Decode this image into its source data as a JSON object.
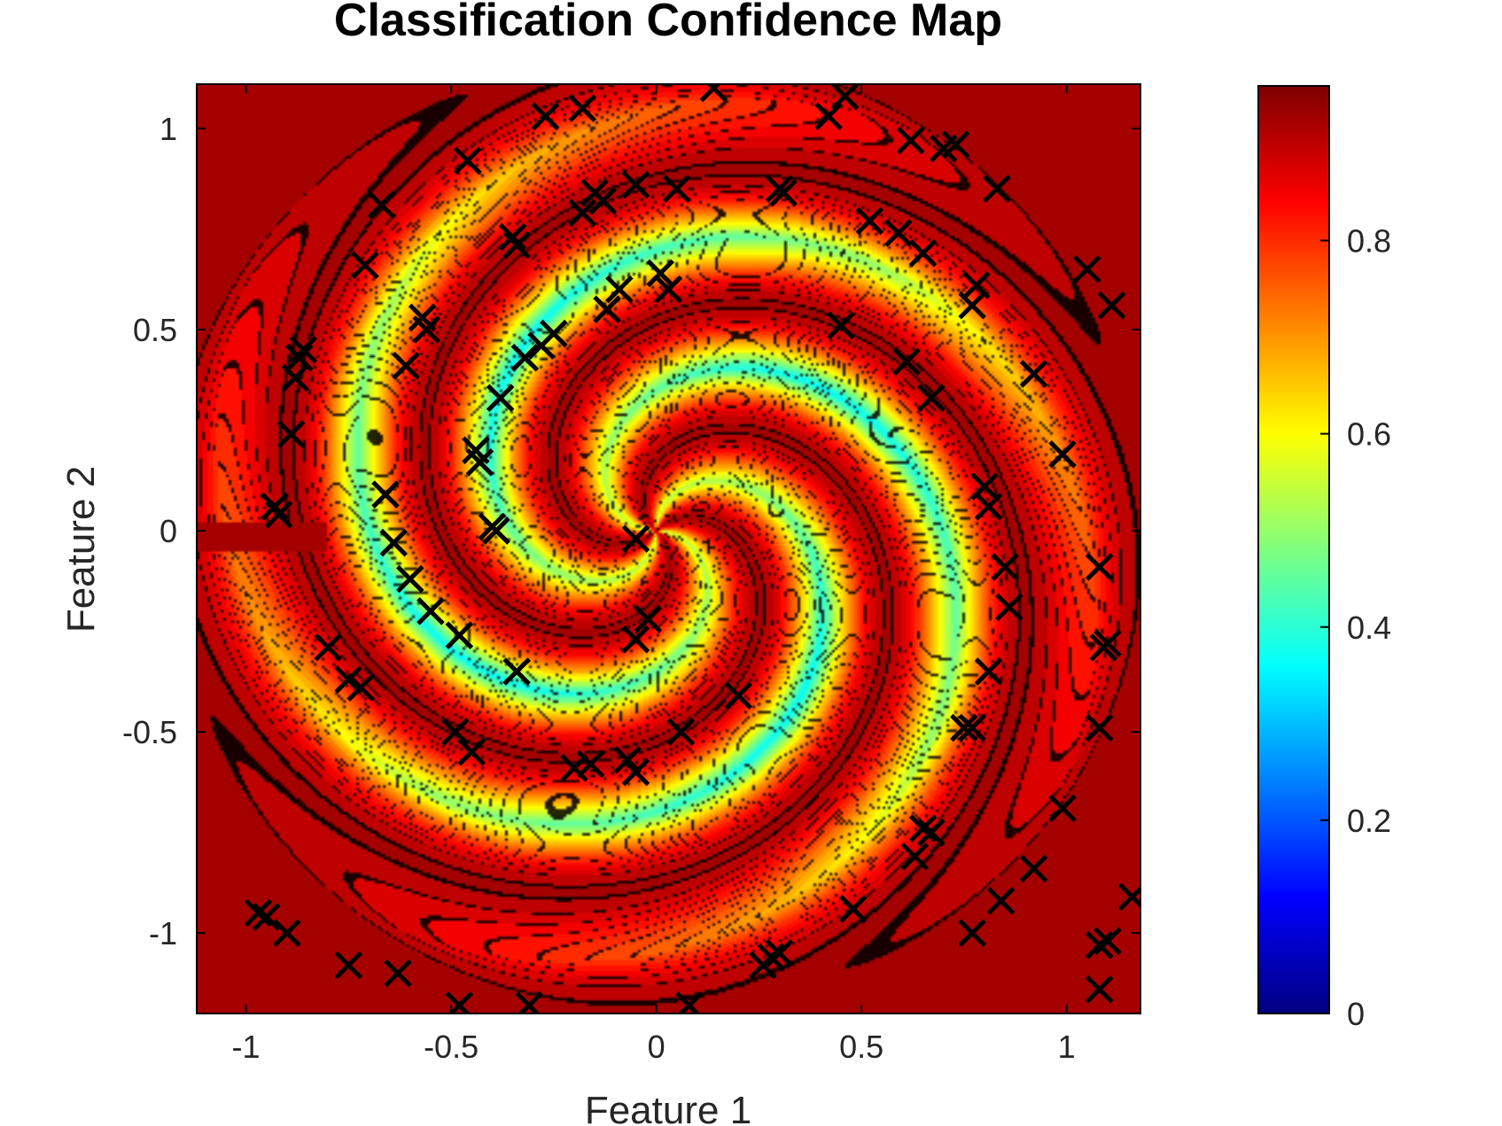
{
  "chart_data": {
    "type": "heatmap",
    "title": "Classification Confidence Map",
    "xlabel": "Feature 1",
    "ylabel": "Feature 2",
    "xlim": [
      -1.12,
      1.18
    ],
    "ylim": [
      -1.2,
      1.11
    ],
    "xticks": [
      -1,
      -0.5,
      0,
      0.5,
      1
    ],
    "xtick_labels": [
      "-1",
      "-0.5",
      "0",
      "0.5",
      "1"
    ],
    "yticks": [
      1,
      0.5,
      0,
      -0.5,
      -1
    ],
    "ytick_labels": [
      "1",
      "0.5",
      "0",
      "-0.5",
      "-1"
    ],
    "colorbar": {
      "range": [
        0,
        0.96
      ],
      "ticks": [
        0,
        0.2,
        0.4,
        0.6,
        0.8
      ],
      "tick_labels": [
        "0",
        "0.2",
        "0.4",
        "0.6",
        "0.8"
      ],
      "colormap": "jet"
    },
    "field": "two-arm spiral pattern with high confidence (~0.9) far from the center, medium confidence (~0.3-0.6) along the spiral boundaries and a dense low-contrast core near the origin",
    "markers": {
      "symbol": "x",
      "color": "#000000",
      "points": [
        [
          0.14,
          1.1
        ],
        [
          0.46,
          1.08
        ],
        [
          0.42,
          1.03
        ],
        [
          -0.27,
          1.03
        ],
        [
          -0.18,
          1.05
        ],
        [
          -0.46,
          0.92
        ],
        [
          0.62,
          0.97
        ],
        [
          0.7,
          0.95
        ],
        [
          0.73,
          0.96
        ],
        [
          0.83,
          0.85
        ],
        [
          -0.67,
          0.81
        ],
        [
          -0.71,
          0.66
        ],
        [
          -0.18,
          0.79
        ],
        [
          -0.15,
          0.84
        ],
        [
          -0.13,
          0.82
        ],
        [
          -0.05,
          0.86
        ],
        [
          0.05,
          0.85
        ],
        [
          0.3,
          0.85
        ],
        [
          0.31,
          0.84
        ],
        [
          0.52,
          0.77
        ],
        [
          0.59,
          0.74
        ],
        [
          0.65,
          0.69
        ],
        [
          -0.35,
          0.73
        ],
        [
          -0.34,
          0.71
        ],
        [
          0.01,
          0.64
        ],
        [
          0.03,
          0.6
        ],
        [
          -0.09,
          0.6
        ],
        [
          -0.12,
          0.55
        ],
        [
          0.78,
          0.61
        ],
        [
          0.77,
          0.56
        ],
        [
          1.05,
          0.65
        ],
        [
          1.11,
          0.56
        ],
        [
          -0.57,
          0.53
        ],
        [
          -0.56,
          0.5
        ],
        [
          -0.25,
          0.49
        ],
        [
          0.45,
          0.51
        ],
        [
          -0.86,
          0.45
        ],
        [
          -0.87,
          0.43
        ],
        [
          -0.88,
          0.38
        ],
        [
          -0.61,
          0.41
        ],
        [
          -0.32,
          0.43
        ],
        [
          -0.28,
          0.46
        ],
        [
          0.61,
          0.42
        ],
        [
          0.92,
          0.39
        ],
        [
          -0.38,
          0.33
        ],
        [
          0.67,
          0.33
        ],
        [
          -0.89,
          0.24
        ],
        [
          -0.44,
          0.2
        ],
        [
          -0.43,
          0.17
        ],
        [
          0.99,
          0.19
        ],
        [
          -0.66,
          0.09
        ],
        [
          -0.93,
          0.06
        ],
        [
          -0.92,
          0.04
        ],
        [
          -0.4,
          0.01
        ],
        [
          -0.39,
          0.0
        ],
        [
          0.8,
          0.11
        ],
        [
          0.81,
          0.06
        ],
        [
          -0.05,
          -0.02
        ],
        [
          -0.64,
          -0.03
        ],
        [
          0.85,
          -0.09
        ],
        [
          1.08,
          -0.09
        ],
        [
          -0.6,
          -0.12
        ],
        [
          -0.55,
          -0.2
        ],
        [
          0.86,
          -0.19
        ],
        [
          -0.48,
          -0.26
        ],
        [
          -0.05,
          -0.27
        ],
        [
          -0.02,
          -0.22
        ],
        [
          -0.8,
          -0.29
        ],
        [
          1.09,
          -0.29
        ],
        [
          1.1,
          -0.28
        ],
        [
          -0.34,
          -0.35
        ],
        [
          0.81,
          -0.35
        ],
        [
          -0.75,
          -0.37
        ],
        [
          -0.72,
          -0.39
        ],
        [
          0.2,
          -0.41
        ],
        [
          -0.49,
          -0.5
        ],
        [
          -0.45,
          -0.55
        ],
        [
          0.75,
          -0.49
        ],
        [
          0.77,
          -0.49
        ],
        [
          1.08,
          -0.49
        ],
        [
          0.06,
          -0.5
        ],
        [
          -0.2,
          -0.59
        ],
        [
          -0.16,
          -0.58
        ],
        [
          -0.05,
          -0.6
        ],
        [
          -0.07,
          -0.57
        ],
        [
          0.99,
          -0.69
        ],
        [
          0.65,
          -0.74
        ],
        [
          0.67,
          -0.75
        ],
        [
          0.63,
          -0.81
        ],
        [
          0.92,
          -0.84
        ],
        [
          0.48,
          -0.94
        ],
        [
          0.84,
          -0.92
        ],
        [
          1.16,
          -0.91
        ],
        [
          -0.97,
          -0.95
        ],
        [
          -0.95,
          -0.96
        ],
        [
          -0.9,
          -1.0
        ],
        [
          0.77,
          -1.0
        ],
        [
          1.08,
          -1.03
        ],
        [
          -0.75,
          -1.08
        ],
        [
          -0.63,
          -1.1
        ],
        [
          0.28,
          -1.06
        ],
        [
          0.26,
          -1.08
        ],
        [
          0.3,
          -1.05
        ],
        [
          1.1,
          -1.02
        ],
        [
          1.08,
          -1.14
        ],
        [
          -0.48,
          -1.18
        ],
        [
          -0.31,
          -1.18
        ],
        [
          0.08,
          -1.18
        ]
      ]
    }
  }
}
